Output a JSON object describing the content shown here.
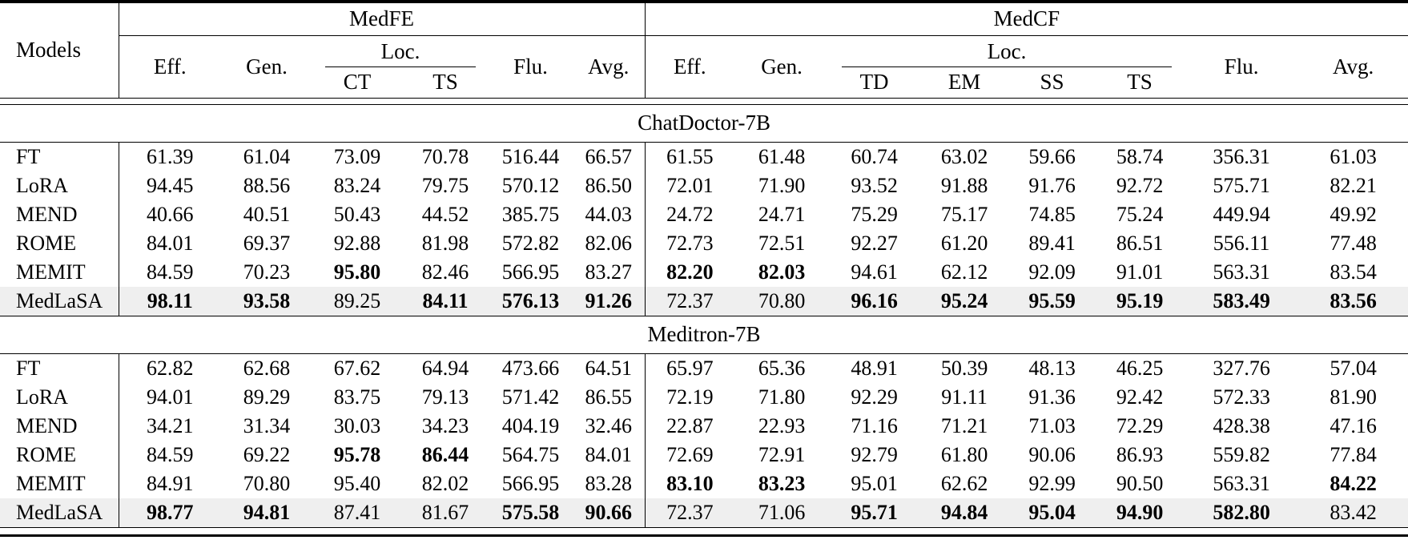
{
  "colors": {
    "highlight_row": "#efefef",
    "text": "#000000",
    "background": "#ffffff",
    "rule": "#000000"
  },
  "table": {
    "models_header": "Models",
    "groups": [
      {
        "label": "MedFE",
        "pre_cols": [
          "Eff.",
          "Gen."
        ],
        "loc_label": "Loc.",
        "loc_cols": [
          "CT",
          "TS"
        ],
        "post_cols": [
          "Flu.",
          "Avg."
        ]
      },
      {
        "label": "MedCF",
        "pre_cols": [
          "Eff.",
          "Gen."
        ],
        "loc_label": "Loc.",
        "loc_cols": [
          "TD",
          "EM",
          "SS",
          "TS"
        ],
        "post_cols": [
          "Flu.",
          "Avg."
        ]
      }
    ],
    "sections": [
      {
        "title": "ChatDoctor-7B",
        "rows": [
          {
            "model": "FT",
            "highlight": false,
            "bold": [],
            "values": [
              "61.39",
              "61.04",
              "73.09",
              "70.78",
              "516.44",
              "66.57",
              "61.55",
              "61.48",
              "60.74",
              "63.02",
              "59.66",
              "58.74",
              "356.31",
              "61.03"
            ]
          },
          {
            "model": "LoRA",
            "highlight": false,
            "bold": [],
            "values": [
              "94.45",
              "88.56",
              "83.24",
              "79.75",
              "570.12",
              "86.50",
              "72.01",
              "71.90",
              "93.52",
              "91.88",
              "91.76",
              "92.72",
              "575.71",
              "82.21"
            ]
          },
          {
            "model": "MEND",
            "highlight": false,
            "bold": [],
            "values": [
              "40.66",
              "40.51",
              "50.43",
              "44.52",
              "385.75",
              "44.03",
              "24.72",
              "24.71",
              "75.29",
              "75.17",
              "74.85",
              "75.24",
              "449.94",
              "49.92"
            ]
          },
          {
            "model": "ROME",
            "highlight": false,
            "bold": [],
            "values": [
              "84.01",
              "69.37",
              "92.88",
              "81.98",
              "572.82",
              "82.06",
              "72.73",
              "72.51",
              "92.27",
              "61.20",
              "89.41",
              "86.51",
              "556.11",
              "77.48"
            ]
          },
          {
            "model": "MEMIT",
            "highlight": false,
            "bold": [
              2,
              6,
              7
            ],
            "values": [
              "84.59",
              "70.23",
              "95.80",
              "82.46",
              "566.95",
              "83.27",
              "82.20",
              "82.03",
              "94.61",
              "62.12",
              "92.09",
              "91.01",
              "563.31",
              "83.54"
            ]
          },
          {
            "model": "MedLaSA",
            "highlight": true,
            "bold": [
              0,
              1,
              3,
              4,
              5,
              8,
              9,
              10,
              11,
              12,
              13
            ],
            "values": [
              "98.11",
              "93.58",
              "89.25",
              "84.11",
              "576.13",
              "91.26",
              "72.37",
              "70.80",
              "96.16",
              "95.24",
              "95.59",
              "95.19",
              "583.49",
              "83.56"
            ]
          }
        ]
      },
      {
        "title": "Meditron-7B",
        "rows": [
          {
            "model": "FT",
            "highlight": false,
            "bold": [],
            "values": [
              "62.82",
              "62.68",
              "67.62",
              "64.94",
              "473.66",
              "64.51",
              "65.97",
              "65.36",
              "48.91",
              "50.39",
              "48.13",
              "46.25",
              "327.76",
              "57.04"
            ]
          },
          {
            "model": "LoRA",
            "highlight": false,
            "bold": [],
            "values": [
              "94.01",
              "89.29",
              "83.75",
              "79.13",
              "571.42",
              "86.55",
              "72.19",
              "71.80",
              "92.29",
              "91.11",
              "91.36",
              "92.42",
              "572.33",
              "81.90"
            ]
          },
          {
            "model": "MEND",
            "highlight": false,
            "bold": [],
            "values": [
              "34.21",
              "31.34",
              "30.03",
              "34.23",
              "404.19",
              "32.46",
              "22.87",
              "22.93",
              "71.16",
              "71.21",
              "71.03",
              "72.29",
              "428.38",
              "47.16"
            ]
          },
          {
            "model": "ROME",
            "highlight": false,
            "bold": [
              2,
              3
            ],
            "values": [
              "84.59",
              "69.22",
              "95.78",
              "86.44",
              "564.75",
              "84.01",
              "72.69",
              "72.91",
              "92.79",
              "61.80",
              "90.06",
              "86.93",
              "559.82",
              "77.84"
            ]
          },
          {
            "model": "MEMIT",
            "highlight": false,
            "bold": [
              6,
              7,
              13
            ],
            "values": [
              "84.91",
              "70.80",
              "95.40",
              "82.02",
              "566.95",
              "83.28",
              "83.10",
              "83.23",
              "95.01",
              "62.62",
              "92.99",
              "90.50",
              "563.31",
              "84.22"
            ]
          },
          {
            "model": "MedLaSA",
            "highlight": true,
            "bold": [
              0,
              1,
              4,
              5,
              8,
              9,
              10,
              11,
              12
            ],
            "values": [
              "98.77",
              "94.81",
              "87.41",
              "81.67",
              "575.58",
              "90.66",
              "72.37",
              "71.06",
              "95.71",
              "94.84",
              "95.04",
              "94.90",
              "582.80",
              "83.42"
            ]
          }
        ]
      }
    ]
  }
}
